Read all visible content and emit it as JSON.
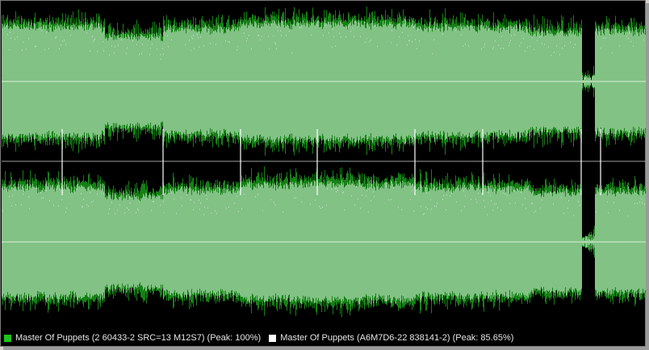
{
  "colors": {
    "background": "#000000",
    "fill_light": "#82c285",
    "fill_dark": "#168016",
    "peak_white": "#ffffff",
    "center_line": "#d8f0d8"
  },
  "legend": {
    "items": [
      {
        "label": "Master Of Puppets (2 60433-2 SRC=13 M12S7) (Peak: 100%)",
        "color": "#1ec41e",
        "icon": "green-square-icon"
      },
      {
        "label": "Master Of Puppets (A6M7D6-22 838141-2) (Peak: 85.65%)",
        "color": "#ffffff",
        "icon": "white-square-icon"
      }
    ]
  },
  "waveform": {
    "envelope_profile": [
      {
        "from": 0.0,
        "to": 0.16,
        "level": 0.78
      },
      {
        "from": 0.16,
        "to": 0.25,
        "level": 0.65
      },
      {
        "from": 0.25,
        "to": 0.37,
        "level": 0.75
      },
      {
        "from": 0.37,
        "to": 0.64,
        "level": 0.82
      },
      {
        "from": 0.64,
        "to": 0.75,
        "level": 0.78
      },
      {
        "from": 0.75,
        "to": 0.82,
        "level": 0.76
      },
      {
        "from": 0.82,
        "to": 0.9,
        "level": 0.7
      },
      {
        "from": 0.9,
        "to": 0.92,
        "level": 0.06
      },
      {
        "from": 0.92,
        "to": 1.0,
        "level": 0.72
      }
    ]
  }
}
